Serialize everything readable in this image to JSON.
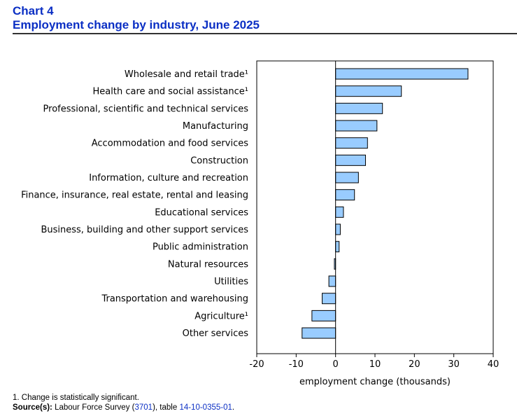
{
  "header": {
    "chart_number": "Chart 4",
    "title": "Employment change by industry, June 2025"
  },
  "footnotes": {
    "note1": "1. Change is statistically significant.",
    "source_label": "Source(s):",
    "source_text_1": " Labour Force Survey (",
    "survey_number": "3701",
    "source_text_2": "), table ",
    "table_number": "14-10-0355-01",
    "source_text_3": "."
  },
  "chart_data": {
    "type": "bar",
    "orientation": "horizontal",
    "title": "Employment change by industry, June 2025",
    "xlabel": "employment change (thousands)",
    "ylabel": "",
    "xlim": [
      -20,
      40
    ],
    "xticks": [
      -20,
      -10,
      0,
      10,
      20,
      30,
      40
    ],
    "grid": false,
    "bar_color": "#99ccff",
    "bar_edge_color": "#000000",
    "categories": [
      "Wholesale and retail trade¹",
      "Health care and social assistance¹",
      "Professional, scientific and technical services",
      "Manufacturing",
      "Accommodation and food services",
      "Construction",
      "Information, culture and recreation",
      "Finance, insurance, real estate, rental and leasing",
      "Educational services",
      "Business, building and other support services",
      "Public administration",
      "Natural resources",
      "Utilities",
      "Transportation and warehousing",
      "Agriculture¹",
      "Other services"
    ],
    "values": [
      33.6,
      16.7,
      11.9,
      10.5,
      8.1,
      7.6,
      5.8,
      4.8,
      2.0,
      1.2,
      0.9,
      -0.3,
      -1.7,
      -3.4,
      -6.0,
      -8.5
    ]
  }
}
